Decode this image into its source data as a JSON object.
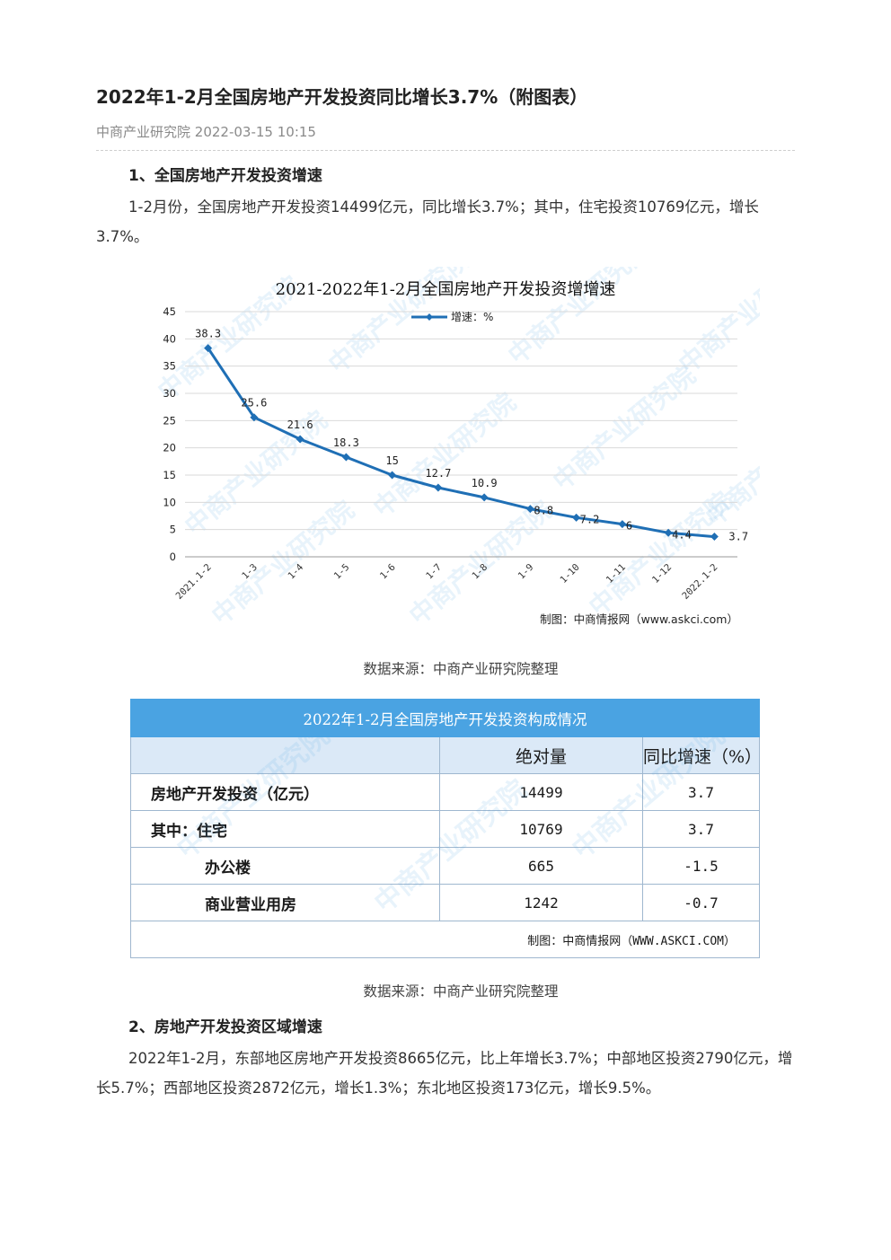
{
  "article": {
    "title": "2022年1-2月全国房地产开发投资同比增长3.7%（附图表）",
    "source": "中商产业研究院",
    "datetime": "2022-03-15 10:15"
  },
  "sections": [
    {
      "heading": "1、全国房地产开发投资增速",
      "paragraph": "1-2月份，全国房地产开发投资14499亿元，同比增长3.7%；其中，住宅投资10769亿元，增长3.7%。"
    },
    {
      "heading": "2、房地产开发投资区域增速",
      "paragraph": "2022年1-2月，东部地区房地产开发投资8665亿元，比上年增长3.7%；中部地区投资2790亿元，增长5.7%；西部地区投资2872亿元，增长1.3%；东北地区投资173亿元，增长9.5%。"
    }
  ],
  "captions": {
    "chart": "数据来源：中商产业研究院整理",
    "table": "数据来源：中商产业研究院整理"
  },
  "chart_data": {
    "type": "line",
    "title": "2021-2022年1-2月全国房地产开发投资增增速",
    "categories": [
      "2021.1-2",
      "1-3",
      "1-4",
      "1-5",
      "1-6",
      "1-7",
      "1-8",
      "1-9",
      "1-10",
      "1-11",
      "1-12",
      "2022.1-2"
    ],
    "series": [
      {
        "name": "增速：%",
        "values": [
          38.3,
          25.6,
          21.6,
          18.3,
          15,
          12.7,
          10.9,
          8.8,
          7.2,
          6,
          4.4,
          3.7
        ]
      }
    ],
    "data_labels": [
      "38.3",
      "25.6",
      "21.6",
      "18.3",
      "15",
      "12.7",
      "10.9",
      "8.8",
      "7.2",
      "6",
      "4.4",
      "3.7"
    ],
    "yticks": [
      "0",
      "5",
      "10",
      "15",
      "20",
      "25",
      "30",
      "35",
      "40",
      "45"
    ],
    "ylim": [
      0,
      45
    ],
    "grid": true,
    "legend": "top-center",
    "line_color": "#1f6fb5",
    "credit": "制图：中商情报网（www.askci.com）"
  },
  "table": {
    "title": "2022年1-2月全国房地产开发投资构成情况",
    "headers": [
      "",
      "绝对量",
      "同比增速（%）"
    ],
    "rows": [
      {
        "name": "房地产开发投资（亿元）",
        "abs": "14499",
        "yoy": "3.7"
      },
      {
        "name": "其中：住宅",
        "abs": "10769",
        "yoy": "3.7"
      },
      {
        "name": "办公楼",
        "abs": "665",
        "yoy": "-1.5"
      },
      {
        "name": "商业营业用房",
        "abs": "1242",
        "yoy": "-0.7"
      }
    ],
    "credit": "制图：中商情报网（WWW.ASKCI.COM）"
  },
  "watermark": {
    "text": "中商产业研究院",
    "color": "#4aa3e2"
  }
}
